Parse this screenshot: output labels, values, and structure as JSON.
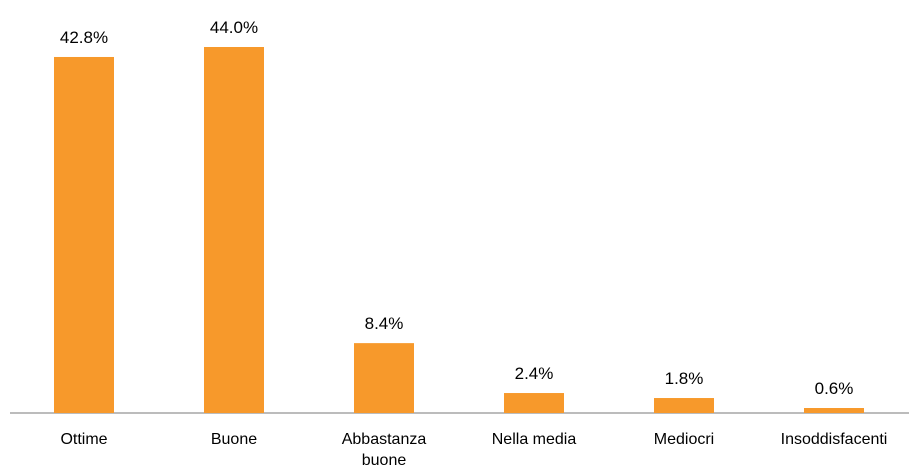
{
  "chart_data": {
    "type": "bar",
    "categories": [
      "Ottime",
      "Buone",
      "Abbastanza buone",
      "Nella media",
      "Mediocri",
      "Insoddisfacenti"
    ],
    "values": [
      42.8,
      44.0,
      8.4,
      2.4,
      1.8,
      0.6
    ],
    "value_labels": [
      "42.8%",
      "44.0%",
      "8.4%",
      "2.4%",
      "1.8%",
      "0.6%"
    ],
    "color": "#f7992b"
  }
}
